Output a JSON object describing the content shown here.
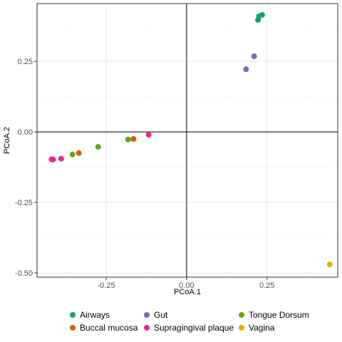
{
  "chart_data": {
    "type": "scatter",
    "xlabel": "PCoA.1",
    "ylabel": "PCoA.2",
    "xlim": [
      -0.465,
      0.47
    ],
    "ylim": [
      -0.515,
      0.455
    ],
    "x_ticks": [
      -0.25,
      0.0,
      0.25
    ],
    "x_tick_labels": [
      "-0.25",
      "0.00",
      "0.25"
    ],
    "y_ticks": [
      -0.5,
      -0.25,
      0.0,
      0.25
    ],
    "y_tick_labels": [
      "-0.50",
      "-0.25",
      "0.00",
      "0.25"
    ],
    "grid": true,
    "reference_lines": {
      "x": 0,
      "y": 0
    },
    "legend_position": "bottom",
    "series": [
      {
        "name": "Airways",
        "color": "#1b9e77",
        "points": [
          [
            0.235,
            0.415
          ],
          [
            0.225,
            0.41
          ],
          [
            0.222,
            0.397
          ]
        ]
      },
      {
        "name": "Buccal mucosa",
        "color": "#d95f02",
        "points": [
          [
            -0.165,
            -0.025
          ],
          [
            -0.335,
            -0.075
          ]
        ]
      },
      {
        "name": "Gut",
        "color": "#7570b3",
        "points": [
          [
            0.21,
            0.268
          ],
          [
            0.185,
            0.222
          ]
        ]
      },
      {
        "name": "Supragingival plaque",
        "color": "#e7298a",
        "points": [
          [
            -0.118,
            -0.01
          ],
          [
            -0.39,
            -0.095
          ],
          [
            -0.415,
            -0.098
          ],
          [
            -0.42,
            -0.097
          ]
        ]
      },
      {
        "name": "Tongue Dorsum",
        "color": "#66a61e",
        "points": [
          [
            -0.275,
            -0.053
          ],
          [
            -0.182,
            -0.027
          ],
          [
            -0.355,
            -0.08
          ]
        ]
      },
      {
        "name": "Vagina",
        "color": "#e6ab02",
        "points": [
          [
            0.445,
            -0.47
          ]
        ]
      }
    ]
  }
}
